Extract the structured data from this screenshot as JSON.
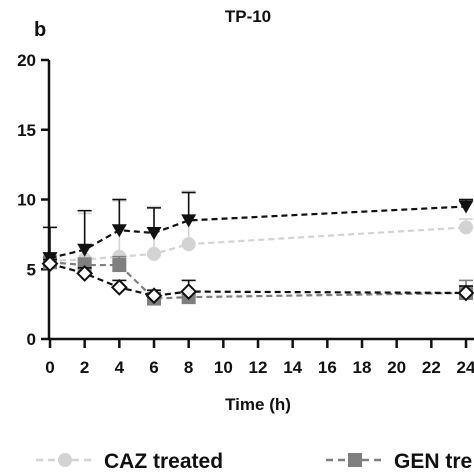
{
  "chart_data": {
    "type": "line",
    "panel_label": "b",
    "title": "TP-10",
    "xlabel": "Time (h)",
    "ylabel": "",
    "x": [
      0,
      2,
      4,
      6,
      8,
      24
    ],
    "x_tick_labels": [
      "0",
      "2",
      "4",
      "6",
      "8",
      "10",
      "12",
      "14",
      "16",
      "18",
      "20",
      "22",
      "24"
    ],
    "y_ticks": [
      0,
      5,
      10,
      15,
      20
    ],
    "xlim": [
      0,
      24
    ],
    "ylim": [
      0,
      20
    ],
    "grid": false,
    "legend_position": "bottom",
    "series": [
      {
        "name": "CAZ treated",
        "color": "#d3d3d3",
        "marker": "circle",
        "values": [
          5.6,
          5.7,
          5.9,
          6.1,
          6.8,
          8.0
        ],
        "error_upper": [
          0.5,
          3.3,
          4.0,
          3.4,
          3.8,
          0.6
        ]
      },
      {
        "name": "GEN treated",
        "color": "#7f7f7f",
        "marker": "square",
        "values": [
          5.5,
          5.3,
          5.3,
          2.9,
          3.0,
          3.3
        ],
        "error_upper": [
          0.3,
          0.5,
          0.6,
          0.2,
          0.2,
          0.9
        ]
      },
      {
        "name": "",
        "color": "#111111",
        "marker": "triangle-down",
        "values": [
          5.8,
          6.4,
          7.8,
          7.6,
          8.5,
          9.5
        ],
        "error_upper": [
          2.2,
          2.8,
          2.2,
          1.8,
          2.0,
          0.5
        ]
      },
      {
        "name": "",
        "color": "#111111",
        "marker": "diamond-open",
        "values": [
          5.4,
          4.7,
          3.7,
          3.1,
          3.4,
          3.3
        ],
        "error_upper": [
          0.3,
          0.4,
          0.5,
          0.4,
          0.8,
          0.5
        ]
      }
    ],
    "legend": [
      "CAZ treated",
      "GEN tre"
    ]
  }
}
